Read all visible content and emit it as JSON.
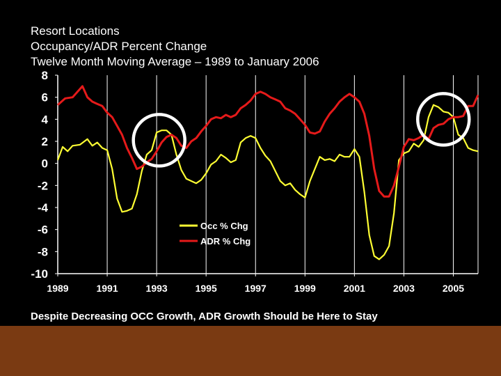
{
  "slide": {
    "caption": "Despite Decreasing OCC Growth, ADR Growth Should be Here to Stay",
    "colors": {
      "background": "#000000",
      "footer_band": "#7a3a12",
      "occ": "#ffff33",
      "adr": "#e51a1a",
      "highlight_circle": "#ffffff"
    }
  },
  "chart_data": {
    "type": "line",
    "title": [
      "Resort Locations",
      "Occupancy/ADR Percent Change",
      "Twelve Month Moving Average – 1989 to January 2006"
    ],
    "xlabel": "",
    "ylabel": "",
    "xlim": [
      1989,
      2006
    ],
    "ylim": [
      -10,
      8
    ],
    "yticks": [
      "8",
      "6",
      "4",
      "2",
      "0",
      "-2",
      "-4",
      "-6",
      "-8",
      "-10"
    ],
    "xticks": [
      "1989",
      "1991",
      "1993",
      "1995",
      "1997",
      "1999",
      "2001",
      "2003",
      "2005"
    ],
    "grid": "vertical",
    "legend_placement": "bottom-center",
    "highlights": [
      {
        "x": 1993.1,
        "y": 2.1
      },
      {
        "x": 2004.6,
        "y": 4.0
      }
    ],
    "series": [
      {
        "name": "Occ % Chg",
        "color": "#ffff33",
        "points": [
          [
            1989.0,
            0.3
          ],
          [
            1989.2,
            1.5
          ],
          [
            1989.4,
            1.1
          ],
          [
            1989.6,
            1.6
          ],
          [
            1989.9,
            1.7
          ],
          [
            1990.2,
            2.2
          ],
          [
            1990.4,
            1.6
          ],
          [
            1990.6,
            1.9
          ],
          [
            1990.8,
            1.4
          ],
          [
            1991.0,
            1.2
          ],
          [
            1991.2,
            -0.5
          ],
          [
            1991.4,
            -3.2
          ],
          [
            1991.6,
            -4.4
          ],
          [
            1991.8,
            -4.3
          ],
          [
            1992.0,
            -4.1
          ],
          [
            1992.2,
            -2.8
          ],
          [
            1992.4,
            -0.7
          ],
          [
            1992.6,
            0.8
          ],
          [
            1992.8,
            1.2
          ],
          [
            1993.0,
            2.8
          ],
          [
            1993.2,
            3.0
          ],
          [
            1993.4,
            3.0
          ],
          [
            1993.6,
            2.6
          ],
          [
            1993.8,
            0.8
          ],
          [
            1994.0,
            -0.6
          ],
          [
            1994.2,
            -1.4
          ],
          [
            1994.4,
            -1.6
          ],
          [
            1994.6,
            -1.8
          ],
          [
            1994.8,
            -1.5
          ],
          [
            1995.0,
            -0.9
          ],
          [
            1995.2,
            -0.1
          ],
          [
            1995.4,
            0.2
          ],
          [
            1995.6,
            0.8
          ],
          [
            1995.8,
            0.5
          ],
          [
            1996.0,
            0.1
          ],
          [
            1996.2,
            0.3
          ],
          [
            1996.4,
            1.9
          ],
          [
            1996.6,
            2.3
          ],
          [
            1996.8,
            2.5
          ],
          [
            1997.0,
            2.3
          ],
          [
            1997.2,
            1.4
          ],
          [
            1997.4,
            0.7
          ],
          [
            1997.6,
            0.2
          ],
          [
            1997.8,
            -0.7
          ],
          [
            1998.0,
            -1.6
          ],
          [
            1998.2,
            -2.0
          ],
          [
            1998.4,
            -1.8
          ],
          [
            1998.6,
            -2.4
          ],
          [
            1998.8,
            -2.8
          ],
          [
            1999.0,
            -3.1
          ],
          [
            1999.2,
            -1.6
          ],
          [
            1999.4,
            -0.5
          ],
          [
            1999.6,
            0.6
          ],
          [
            1999.8,
            0.3
          ],
          [
            2000.0,
            0.4
          ],
          [
            2000.2,
            0.2
          ],
          [
            2000.4,
            0.8
          ],
          [
            2000.6,
            0.6
          ],
          [
            2000.8,
            0.6
          ],
          [
            2001.0,
            1.3
          ],
          [
            2001.2,
            0.6
          ],
          [
            2001.4,
            -2.6
          ],
          [
            2001.6,
            -6.5
          ],
          [
            2001.8,
            -8.4
          ],
          [
            2002.0,
            -8.7
          ],
          [
            2002.2,
            -8.3
          ],
          [
            2002.4,
            -7.5
          ],
          [
            2002.6,
            -4.5
          ],
          [
            2002.8,
            0.3
          ],
          [
            2003.0,
            0.9
          ],
          [
            2003.2,
            1.1
          ],
          [
            2003.4,
            1.8
          ],
          [
            2003.6,
            1.5
          ],
          [
            2003.8,
            2.1
          ],
          [
            2004.0,
            4.2
          ],
          [
            2004.2,
            5.3
          ],
          [
            2004.4,
            5.1
          ],
          [
            2004.6,
            4.7
          ],
          [
            2004.8,
            4.6
          ],
          [
            2005.0,
            4.2
          ],
          [
            2005.2,
            2.6
          ],
          [
            2005.4,
            2.3
          ],
          [
            2005.6,
            1.4
          ],
          [
            2005.8,
            1.2
          ],
          [
            2006.0,
            1.1
          ]
        ]
      },
      {
        "name": "ADR % Chg",
        "color": "#e51a1a",
        "points": [
          [
            1989.0,
            5.3
          ],
          [
            1989.3,
            5.9
          ],
          [
            1989.6,
            6.0
          ],
          [
            1989.8,
            6.5
          ],
          [
            1990.0,
            7.0
          ],
          [
            1990.2,
            6.0
          ],
          [
            1990.4,
            5.6
          ],
          [
            1990.6,
            5.4
          ],
          [
            1990.8,
            5.2
          ],
          [
            1991.0,
            4.6
          ],
          [
            1991.2,
            4.2
          ],
          [
            1991.4,
            3.4
          ],
          [
            1991.6,
            2.6
          ],
          [
            1991.8,
            1.4
          ],
          [
            1992.0,
            0.5
          ],
          [
            1992.2,
            -0.5
          ],
          [
            1992.4,
            -0.3
          ],
          [
            1992.6,
            0.1
          ],
          [
            1992.8,
            0.4
          ],
          [
            1993.0,
            1.1
          ],
          [
            1993.2,
            1.9
          ],
          [
            1993.4,
            2.4
          ],
          [
            1993.6,
            2.6
          ],
          [
            1993.8,
            2.3
          ],
          [
            1994.0,
            1.6
          ],
          [
            1994.2,
            1.4
          ],
          [
            1994.4,
            2.0
          ],
          [
            1994.6,
            2.3
          ],
          [
            1994.8,
            2.9
          ],
          [
            1995.0,
            3.4
          ],
          [
            1995.2,
            4.0
          ],
          [
            1995.4,
            4.2
          ],
          [
            1995.6,
            4.1
          ],
          [
            1995.8,
            4.4
          ],
          [
            1996.0,
            4.2
          ],
          [
            1996.2,
            4.4
          ],
          [
            1996.4,
            5.0
          ],
          [
            1996.6,
            5.3
          ],
          [
            1996.8,
            5.7
          ],
          [
            1997.0,
            6.3
          ],
          [
            1997.2,
            6.5
          ],
          [
            1997.4,
            6.3
          ],
          [
            1997.6,
            6.0
          ],
          [
            1997.8,
            5.8
          ],
          [
            1998.0,
            5.6
          ],
          [
            1998.2,
            5.0
          ],
          [
            1998.4,
            4.8
          ],
          [
            1998.6,
            4.5
          ],
          [
            1998.8,
            4.0
          ],
          [
            1999.0,
            3.5
          ],
          [
            1999.2,
            2.8
          ],
          [
            1999.4,
            2.7
          ],
          [
            1999.6,
            2.9
          ],
          [
            1999.8,
            3.8
          ],
          [
            2000.0,
            4.5
          ],
          [
            2000.2,
            5.0
          ],
          [
            2000.4,
            5.6
          ],
          [
            2000.6,
            6.0
          ],
          [
            2000.8,
            6.3
          ],
          [
            2001.0,
            6.0
          ],
          [
            2001.2,
            5.6
          ],
          [
            2001.4,
            4.5
          ],
          [
            2001.6,
            2.5
          ],
          [
            2001.8,
            -0.5
          ],
          [
            2002.0,
            -2.5
          ],
          [
            2002.2,
            -3.0
          ],
          [
            2002.4,
            -3.0
          ],
          [
            2002.6,
            -2.0
          ],
          [
            2002.8,
            -0.3
          ],
          [
            2003.0,
            1.5
          ],
          [
            2003.2,
            2.2
          ],
          [
            2003.4,
            2.1
          ],
          [
            2003.6,
            2.3
          ],
          [
            2003.8,
            2.6
          ],
          [
            2004.0,
            2.2
          ],
          [
            2004.2,
            3.2
          ],
          [
            2004.4,
            3.5
          ],
          [
            2004.6,
            3.6
          ],
          [
            2004.8,
            4.0
          ],
          [
            2005.0,
            4.2
          ],
          [
            2005.2,
            4.2
          ],
          [
            2005.4,
            4.3
          ],
          [
            2005.6,
            5.2
          ],
          [
            2005.8,
            5.2
          ],
          [
            2006.0,
            6.2
          ]
        ]
      }
    ]
  }
}
